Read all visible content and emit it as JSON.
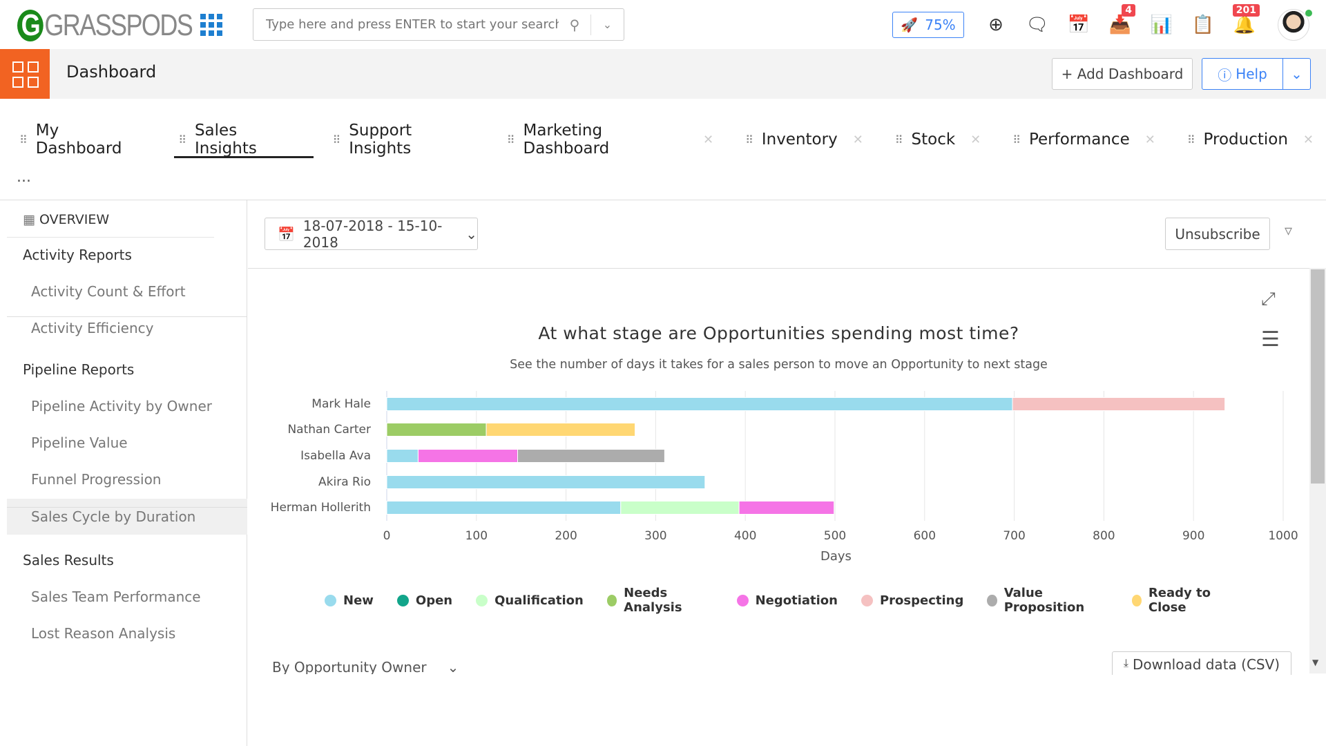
{
  "header": {
    "logo_text": "GRASSPODS",
    "search_placeholder": "Type here and press ENTER to start your search",
    "progress": "75%",
    "inbox_badge": "4",
    "notif_badge": "201"
  },
  "toolbar": {
    "title": "Dashboard",
    "add_dashboard": "+ Add Dashboard",
    "help": "Help"
  },
  "tabs": [
    {
      "label": "My Dashboard"
    },
    {
      "label": "Sales Insights"
    },
    {
      "label": "Support Insights"
    },
    {
      "label": "Marketing Dashboard"
    },
    {
      "label": "Inventory"
    },
    {
      "label": "Stock"
    },
    {
      "label": "Performance"
    },
    {
      "label": "Production"
    }
  ],
  "more": "...",
  "sidebar": {
    "overview": "OVERVIEW",
    "items": [
      {
        "label": "Activity Reports",
        "type": "h"
      },
      {
        "label": "Activity Count & Effort",
        "type": "c"
      },
      {
        "label": "Activity Efficiency",
        "type": "c"
      },
      {
        "label": "Pipeline Reports",
        "type": "h"
      },
      {
        "label": "Pipeline Activity by Owner",
        "type": "c"
      },
      {
        "label": "Pipeline Value",
        "type": "c"
      },
      {
        "label": "Funnel Progression",
        "type": "c"
      },
      {
        "label": "Sales Cycle by Duration",
        "type": "c"
      },
      {
        "label": "Sales Results",
        "type": "h"
      },
      {
        "label": "Sales Team Performance",
        "type": "c"
      },
      {
        "label": "Lost Reason Analysis",
        "type": "c"
      }
    ]
  },
  "filters": {
    "date_range": "18-07-2018 - 15-10-2018",
    "unsubscribe": "Unsubscribe",
    "group_by": "By Opportunity Owner",
    "download": "Download data (CSV)"
  },
  "chart_data": {
    "type": "bar",
    "orientation": "horizontal",
    "stacked": true,
    "title": "At what stage are Opportunities spending most time?",
    "subtitle": "See the number of days it takes for a sales person to move an Opportunity to next stage",
    "xlabel": "Days",
    "xlim": [
      0,
      1000
    ],
    "xticks": [
      0,
      100,
      200,
      300,
      400,
      500,
      600,
      700,
      800,
      900,
      1000
    ],
    "categories": [
      "Mark Hale",
      "Nathan Carter",
      "Isabella Ava",
      "Akira Rio",
      "Herman Hollerith"
    ],
    "series": [
      {
        "name": "New",
        "color": "#99dbed",
        "values": [
          698,
          0,
          35,
          355,
          261
        ]
      },
      {
        "name": "Open",
        "color": "#12a58a",
        "values": [
          0,
          0,
          0,
          0,
          0
        ]
      },
      {
        "name": "Qualification",
        "color": "#c9ffc9",
        "values": [
          0,
          0,
          0,
          0,
          132
        ]
      },
      {
        "name": "Needs Analysis",
        "color": "#9ccc65",
        "values": [
          0,
          111,
          0,
          0,
          0
        ]
      },
      {
        "name": "Negotiation",
        "color": "#f574e6",
        "values": [
          0,
          0,
          111,
          0,
          106
        ]
      },
      {
        "name": "Prospecting",
        "color": "#f5c1c1",
        "values": [
          237,
          0,
          0,
          0,
          0
        ]
      },
      {
        "name": "Value Proposition",
        "color": "#acacac",
        "values": [
          0,
          0,
          164,
          0,
          0
        ]
      },
      {
        "name": "Ready to Close",
        "color": "#ffd773",
        "values": [
          0,
          166,
          0,
          0,
          0
        ]
      }
    ],
    "legend": "bottom"
  }
}
